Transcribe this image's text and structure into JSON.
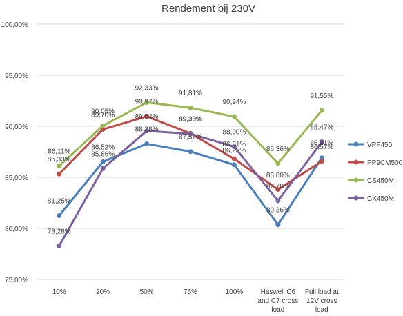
{
  "chart_data": {
    "type": "line",
    "title": "Rendement bij 230V",
    "categories": [
      "10%",
      "20%",
      "50%",
      "75%",
      "100%",
      "Haswell C6 and C7 cross load",
      "Full load at 12V cross load"
    ],
    "category_lines": [
      [
        "10%"
      ],
      [
        "20%"
      ],
      [
        "50%"
      ],
      [
        "75%"
      ],
      [
        "100%"
      ],
      [
        "Haswell C6",
        "and C7 cross",
        "load"
      ],
      [
        "Full load at",
        "12V cross",
        "load"
      ]
    ],
    "ylim": [
      75,
      100
    ],
    "yticks": [
      75,
      80,
      85,
      90,
      95,
      100
    ],
    "ytick_labels": [
      "75,00%",
      "80,00%",
      "85,00%",
      "90,00%",
      "95,00%",
      "100,00%"
    ],
    "grid": true,
    "legend_position": "right",
    "series": [
      {
        "name": "VPF450",
        "color": "#4a7ebb",
        "values": [
          81.25,
          86.52,
          88.28,
          87.52,
          86.23,
          80.36,
          86.91
        ],
        "labels": [
          "81,25%",
          "86,52%",
          "88,28%",
          "87,52%",
          "86,23%",
          "80,36%",
          "86,91%"
        ]
      },
      {
        "name": "PP9CM500",
        "color": "#be4b48",
        "values": [
          85.33,
          89.7,
          90.97,
          89.3,
          86.81,
          83.8,
          86.57
        ],
        "labels": [
          "85,33%",
          "89,70%",
          "90,97%",
          "89,30%",
          "86,81%",
          "83,80%",
          "86,57%"
        ]
      },
      {
        "name": "CS450M",
        "color": "#98b954",
        "values": [
          86.11,
          90.05,
          92.33,
          91.81,
          90.94,
          86.36,
          91.55
        ],
        "labels": [
          "86,11%",
          "90,05%",
          "92,33%",
          "91,81%",
          "90,94%",
          "86,36%",
          "91,55%"
        ]
      },
      {
        "name": "CX450M",
        "color": "#7d60a0",
        "values": [
          78.28,
          85.86,
          89.54,
          89.26,
          88.0,
          82.7,
          88.47
        ],
        "labels": [
          "78,28%",
          "85,86%",
          "89,54%",
          "89,26%",
          "88,00%",
          "82,70%",
          "88,47%"
        ]
      }
    ]
  }
}
